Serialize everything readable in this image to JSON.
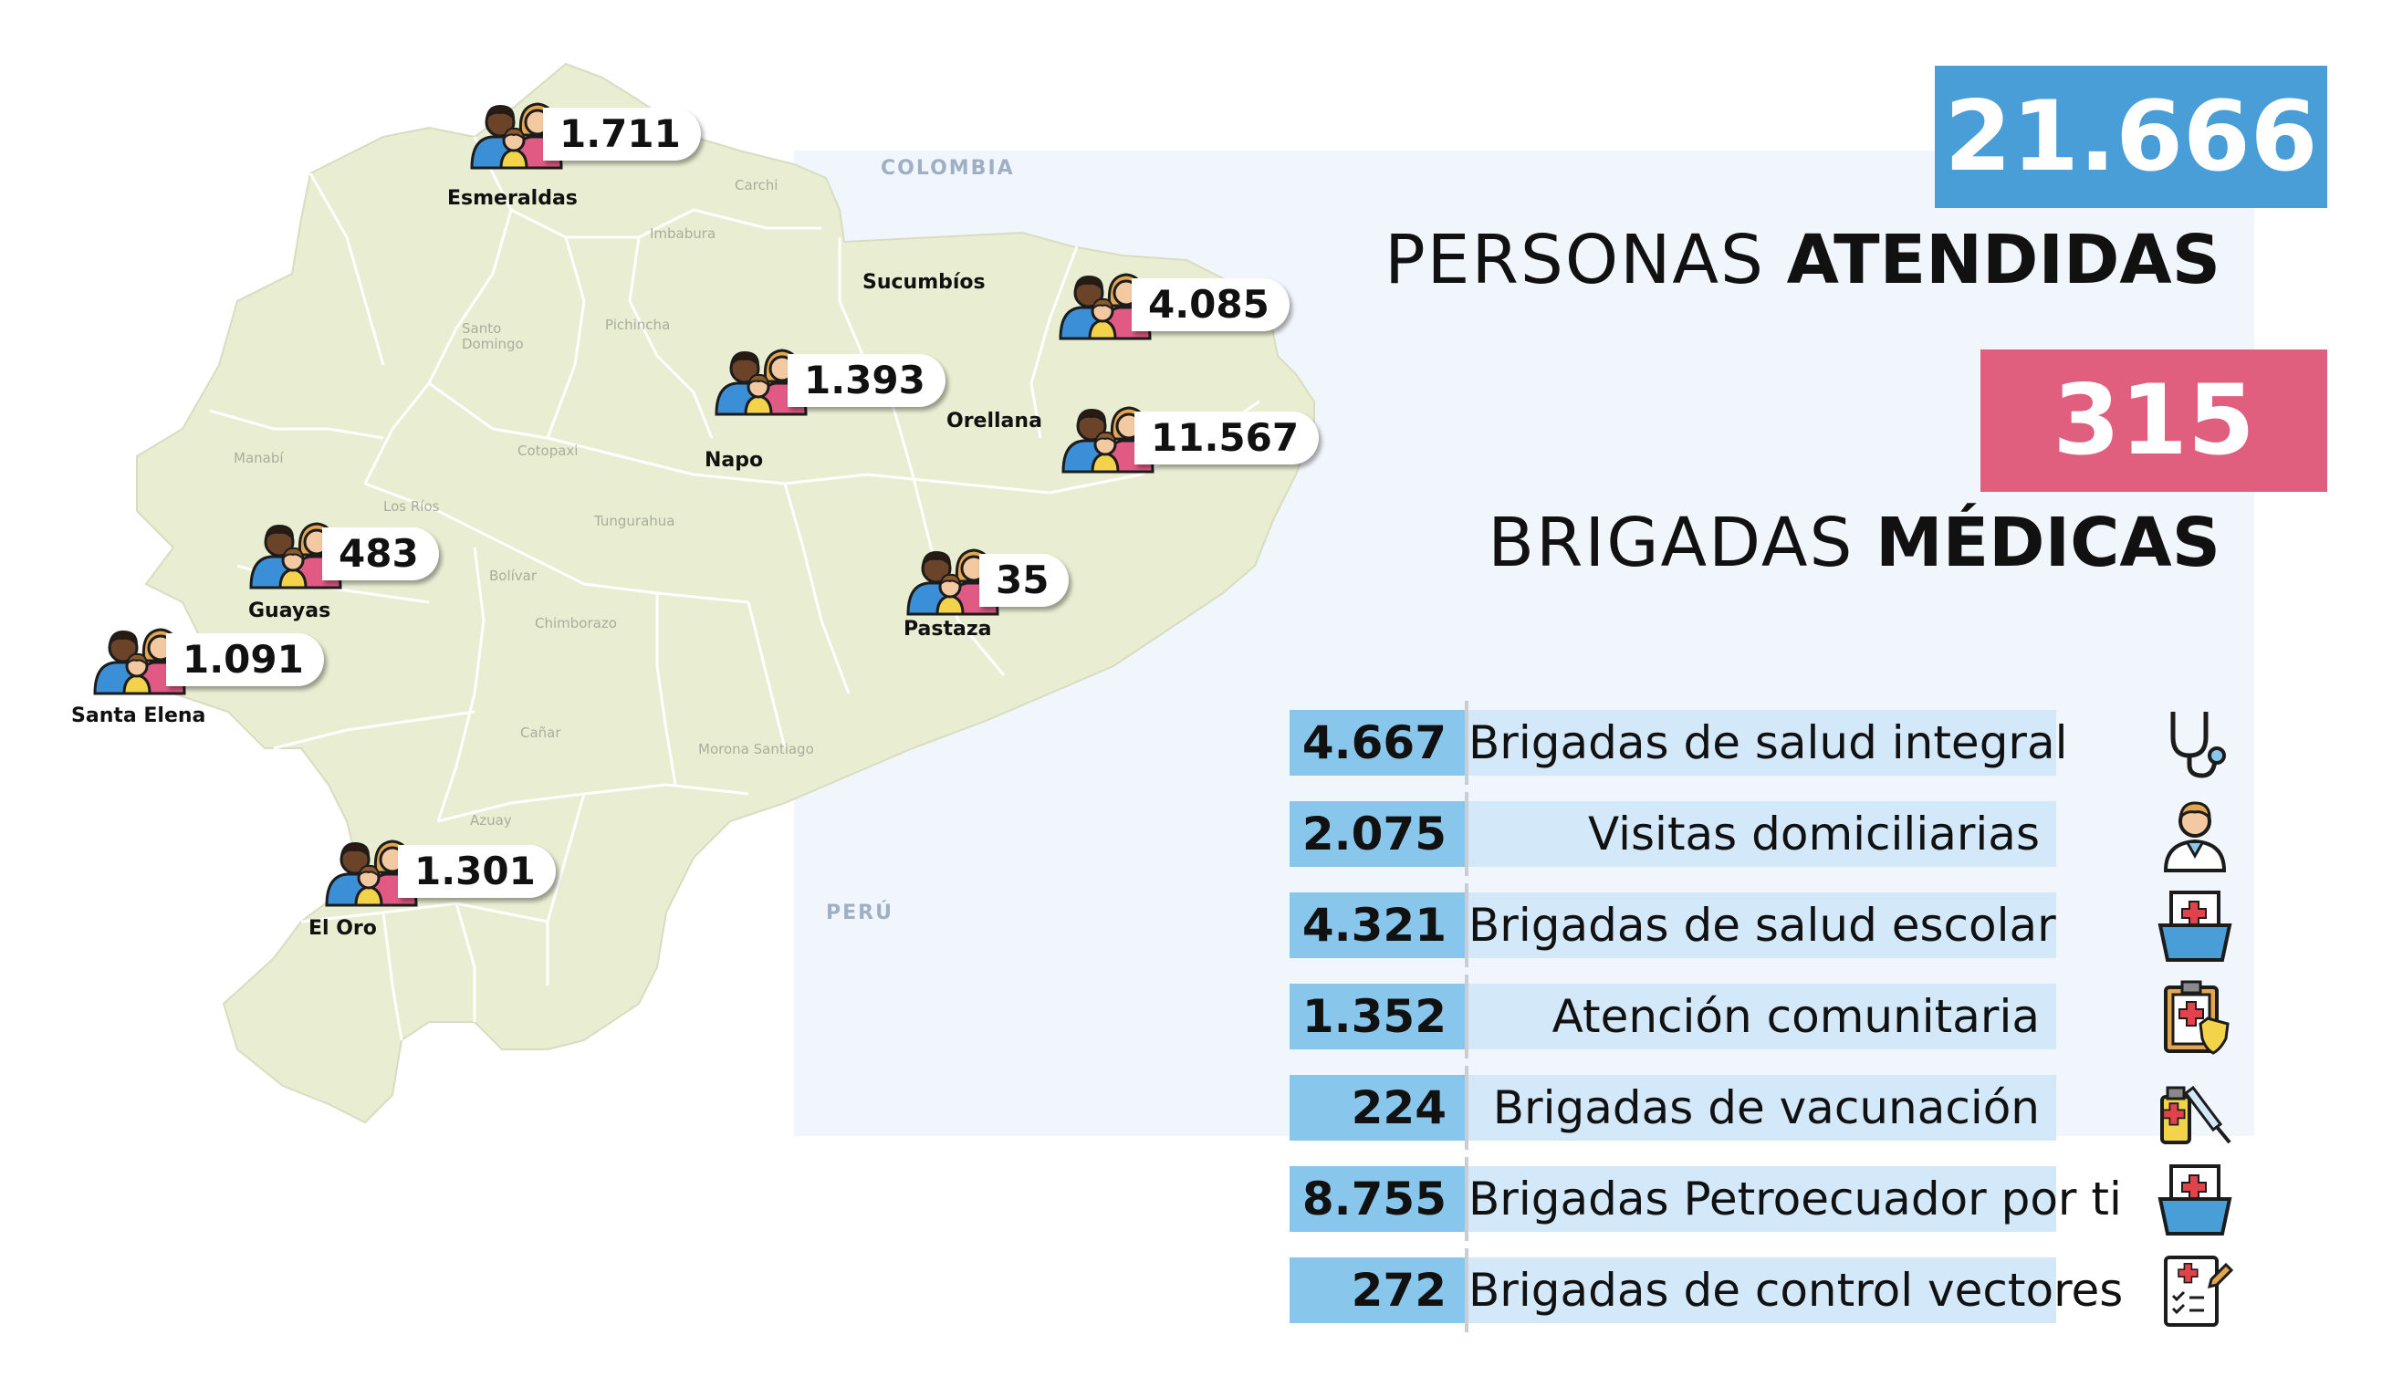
{
  "countries": {
    "north": "COLOMBIA",
    "south": "PERÚ"
  },
  "cantons": [
    {
      "label": "Carchi"
    },
    {
      "label": "Imbabura"
    },
    {
      "label": "Pichincha"
    },
    {
      "label": "Santo\nDomingo"
    },
    {
      "label": "Manabí"
    },
    {
      "label": "Cotopaxi"
    },
    {
      "label": "Los Ríos"
    },
    {
      "label": "Tungurahua"
    },
    {
      "label": "Bolívar"
    },
    {
      "label": "Chimborazo"
    },
    {
      "label": "Cañar"
    },
    {
      "label": "Azuay"
    },
    {
      "label": "Morona Santiago"
    }
  ],
  "provinces": [
    {
      "name": "Esmeraldas",
      "value": "1.711"
    },
    {
      "name": "Sucumbíos",
      "value": "4.085"
    },
    {
      "name": "Napo",
      "value": "1.393"
    },
    {
      "name": "Orellana",
      "value": "11.567"
    },
    {
      "name": "Guayas",
      "value": "483"
    },
    {
      "name": "Pastaza",
      "value": "35"
    },
    {
      "name": "Santa Elena",
      "value": "1.091"
    },
    {
      "name": "El Oro",
      "value": "1.301"
    }
  ],
  "summary": {
    "total": "21.666",
    "total_label_light": "PERSONAS",
    "total_label_bold": "ATENDIDAS",
    "brigades": "315",
    "brigades_label_light": "BRIGADAS",
    "brigades_label_bold": "MÉDICAS"
  },
  "breakdown": [
    {
      "value": "4.667",
      "label": "Brigadas de salud integral",
      "icon": "stethoscope-icon"
    },
    {
      "value": "2.075",
      "label": "Visitas domiciliarias",
      "icon": "doctor-icon"
    },
    {
      "value": "4.321",
      "label": "Brigadas de salud escolar",
      "icon": "medical-folder-icon"
    },
    {
      "value": "1.352",
      "label": "Atención comunitaria",
      "icon": "clipboard-shield-icon"
    },
    {
      "value": "224",
      "label": "Brigadas de vacunación",
      "icon": "vaccine-icon"
    },
    {
      "value": "8.755",
      "label": "Brigadas Petroecuador por ti",
      "icon": "medical-folder-icon"
    },
    {
      "value": "272",
      "label": "Brigadas de control vectores",
      "icon": "checklist-icon"
    }
  ],
  "colors": {
    "land": "#e9edd2",
    "border": "#ffffff",
    "total_box": "#4a9ed8",
    "brigades_box": "#e05f7e",
    "value_cell": "#89c6ec",
    "label_cell": "#d3e8f8"
  }
}
